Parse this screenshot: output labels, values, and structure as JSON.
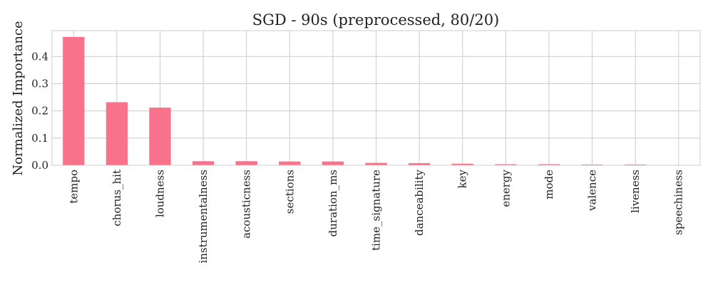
{
  "chart_data": {
    "type": "bar",
    "title": "SGD - 90s (preprocessed, 80/20)",
    "xlabel": "",
    "ylabel": "Normalized Importance",
    "categories": [
      "tempo",
      "chorus_hit",
      "loudness",
      "instrumentalness",
      "acousticness",
      "sections",
      "duration_ms",
      "time_signature",
      "danceability",
      "key",
      "energy",
      "mode",
      "valence",
      "liveness",
      "speechiness"
    ],
    "values": [
      0.472,
      0.232,
      0.212,
      0.015,
      0.015,
      0.014,
      0.014,
      0.009,
      0.008,
      0.006,
      0.004,
      0.004,
      0.003,
      0.003,
      0.001
    ],
    "yticks": [
      0.0,
      0.1,
      0.2,
      0.3,
      0.4
    ],
    "ytick_labels": [
      "0.0",
      "0.1",
      "0.2",
      "0.3",
      "0.4"
    ],
    "ylim": [
      0,
      0.495
    ],
    "grid": true,
    "bar_color": "#f7728a"
  }
}
